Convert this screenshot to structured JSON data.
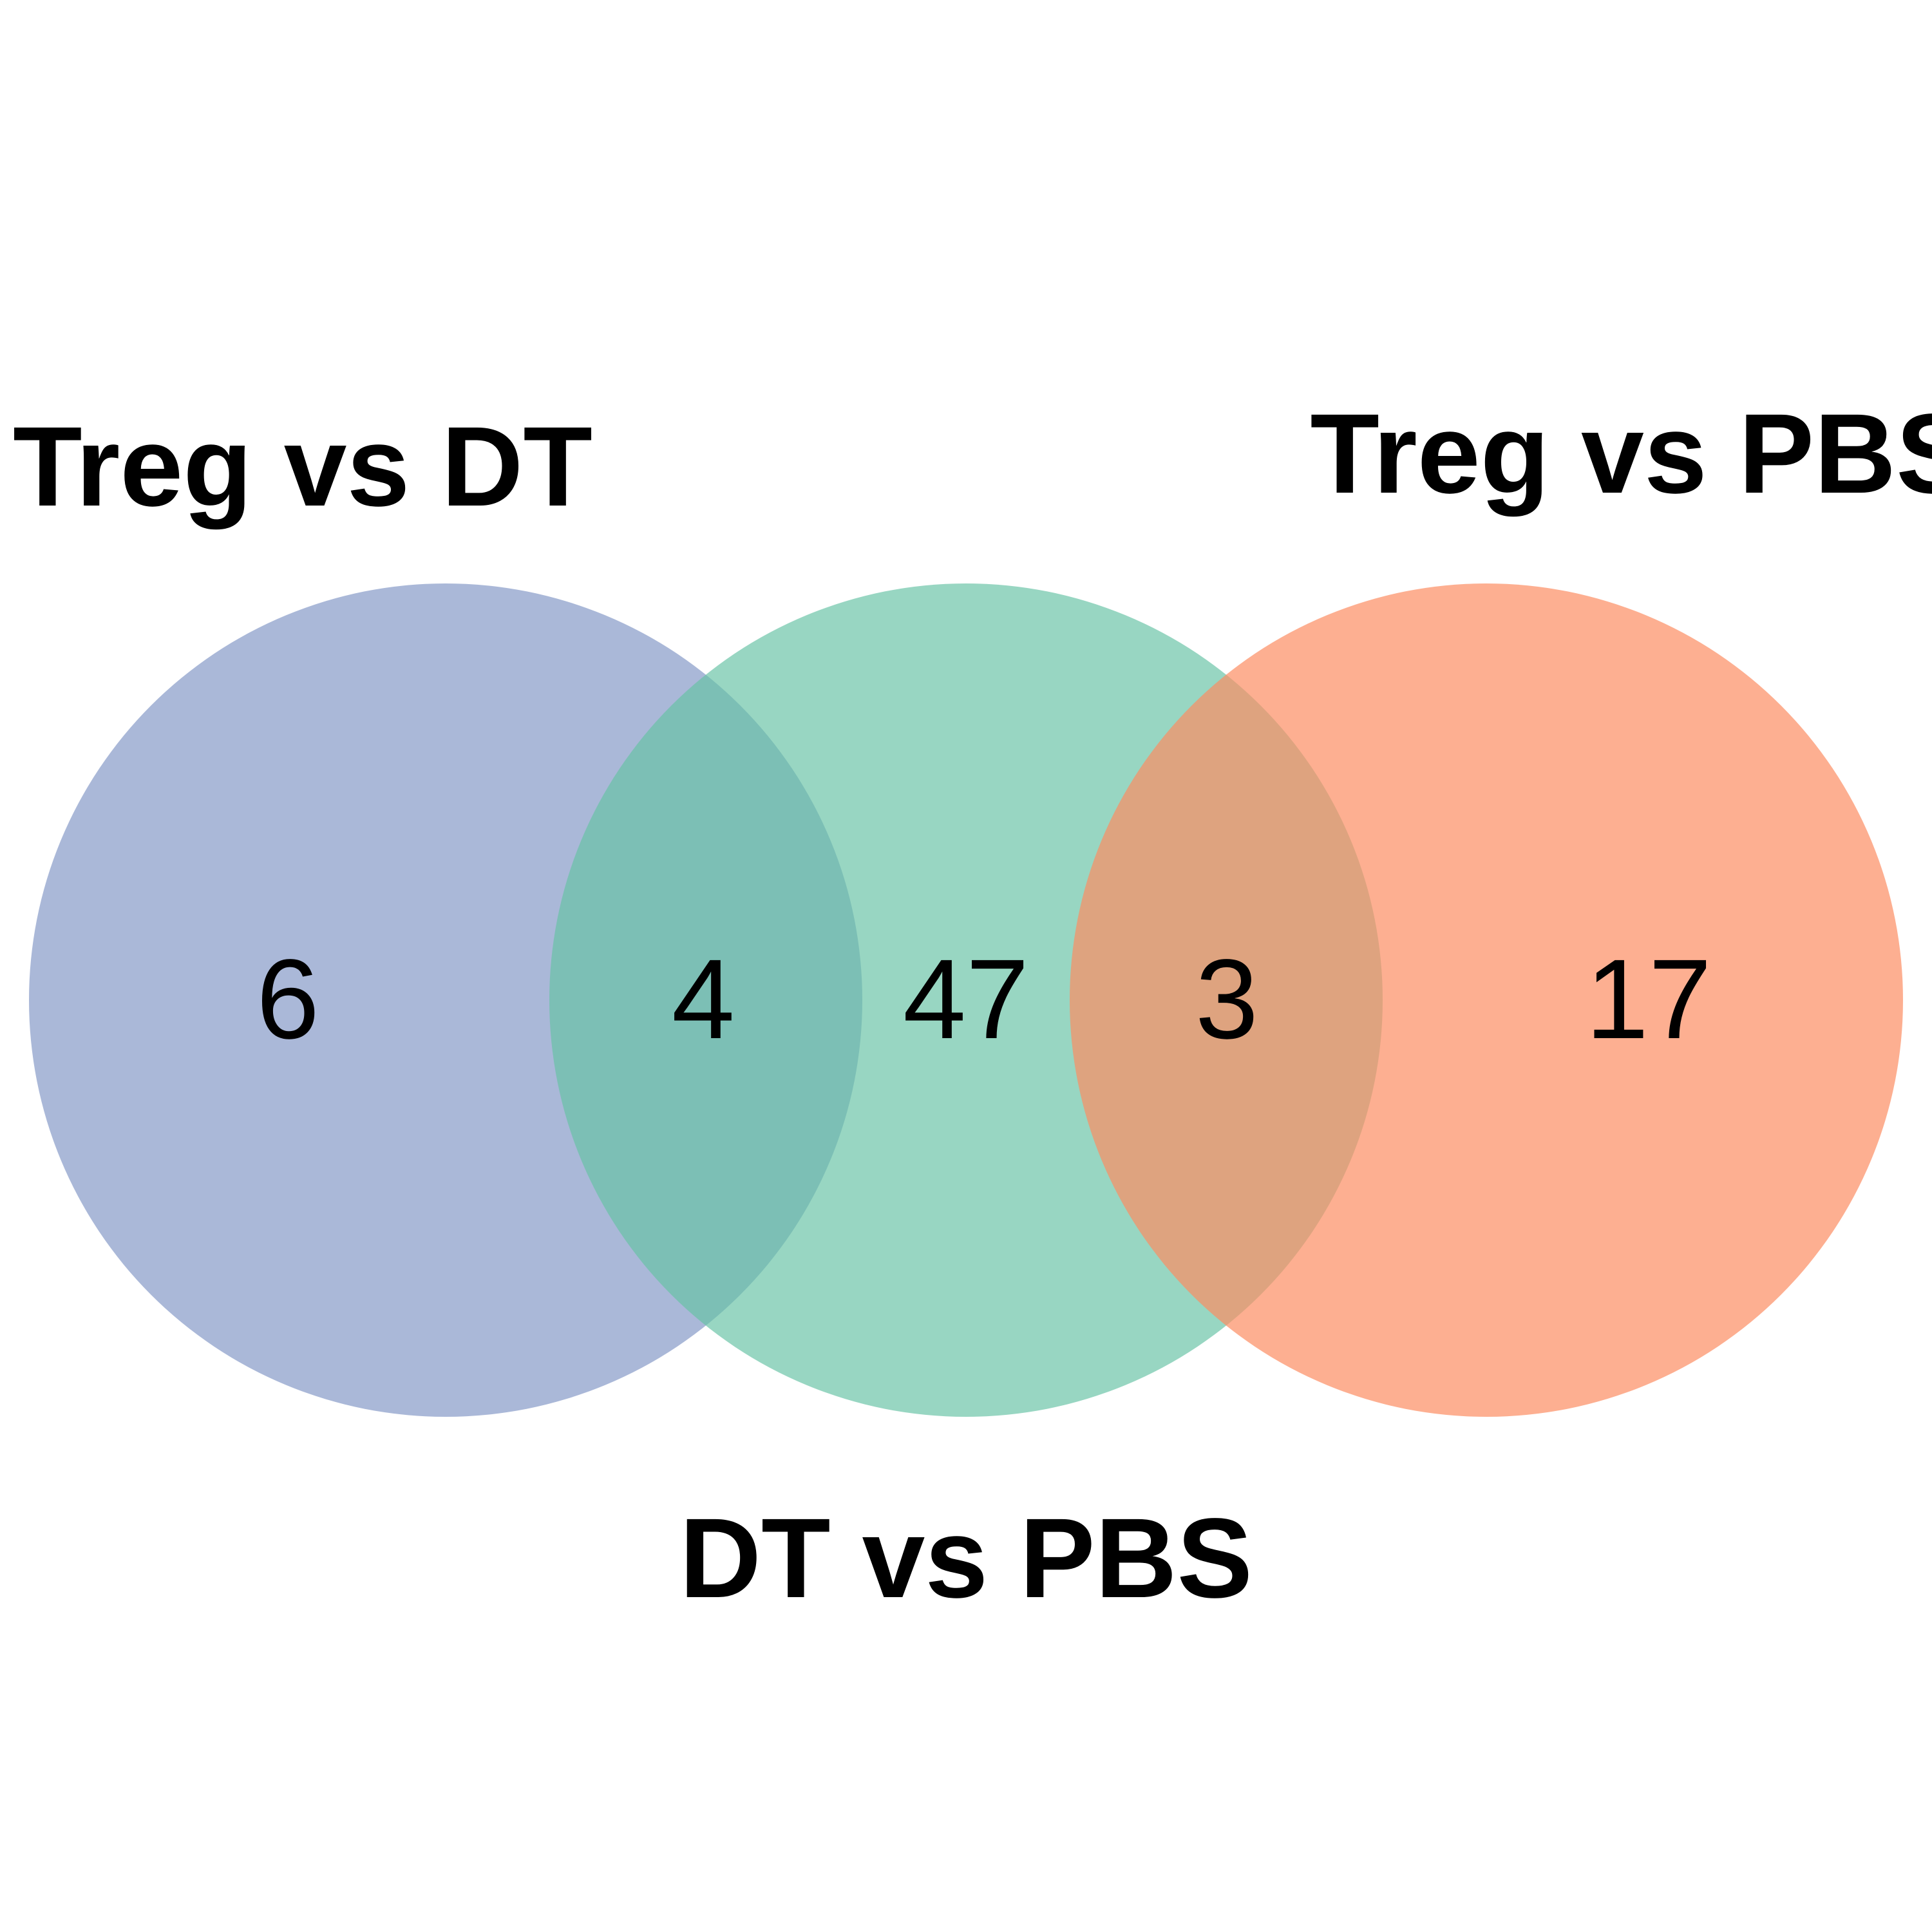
{
  "sets": [
    {
      "key": "left",
      "label": "Treg vs DT",
      "color": "#8DA0CB"
    },
    {
      "key": "middle",
      "label": "DT vs PBS",
      "color": "#66C2A5"
    },
    {
      "key": "right",
      "label": "Treg vs PBS",
      "color": "#FC8D62"
    }
  ],
  "regions": {
    "left_only": "6",
    "left_middle": "4",
    "middle_only": "47",
    "middle_right": "3",
    "right_only": "17"
  }
}
